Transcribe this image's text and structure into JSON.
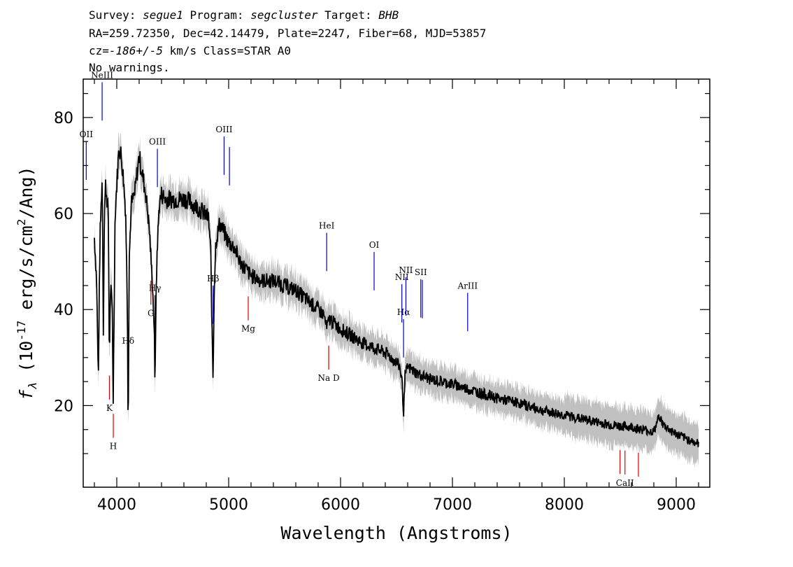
{
  "header": {
    "line1_parts": [
      "Survey: ",
      "segue1",
      " Program: ",
      "segcluster",
      " Target: ",
      "BHB"
    ],
    "line2": "RA=259.72350, Dec=42.14479, Plate=2247, Fiber=68, MJD=53857",
    "line3_parts": [
      "cz=",
      "-186+/-5",
      " km/s Class=STAR A0"
    ],
    "line4": "No warnings."
  },
  "chart_data": {
    "type": "line",
    "title": "",
    "xlabel": "Wavelength (Angstroms)",
    "ylabel_parts": [
      "f",
      "λ",
      " (10",
      "-17",
      " erg/s/cm",
      "2",
      "/Ang)"
    ],
    "xlim": [
      3700,
      9300
    ],
    "ylim": [
      3,
      88
    ],
    "x_ticks": [
      4000,
      5000,
      6000,
      7000,
      8000,
      9000
    ],
    "x_tick_labels": [
      "4000",
      "5000",
      "6000",
      "7000",
      "8000",
      "9000"
    ],
    "y_ticks": [
      20,
      40,
      60,
      80
    ],
    "y_tick_labels": [
      "20",
      "40",
      "60",
      "80"
    ],
    "grid": false,
    "series": [
      {
        "color": "#000000",
        "x": [
          3800,
          3820,
          3835,
          3842,
          3850,
          3870,
          3880,
          3889,
          3900,
          3925,
          3933,
          3945,
          3960,
          3968,
          3985,
          4000,
          4020,
          4040,
          4060,
          4080,
          4095,
          4102,
          4110,
          4130,
          4160,
          4180,
          4200,
          4230,
          4260,
          4290,
          4320,
          4335,
          4341,
          4348,
          4360,
          4380,
          4400,
          4440,
          4500,
          4560,
          4620,
          4680,
          4740,
          4780,
          4820,
          4840,
          4850,
          4861,
          4870,
          4885,
          4920,
          4960,
          5000,
          5050,
          5100,
          5200,
          5300,
          5400,
          5500,
          5600,
          5700,
          5800,
          5850,
          5876,
          5900,
          5950,
          6000,
          6100,
          6200,
          6300,
          6400,
          6500,
          6530,
          6550,
          6563,
          6575,
          6600,
          6700,
          6800,
          6900,
          7000,
          7200,
          7400,
          7600,
          7800,
          8000,
          8200,
          8400,
          8600,
          8800,
          8850,
          8880,
          9000,
          9100,
          9200
        ],
        "y": [
          55,
          46,
          25,
          40,
          55,
          68,
          35,
          60,
          66,
          60,
          30,
          45,
          40,
          21,
          60,
          66,
          74,
          72,
          67,
          60,
          40,
          12,
          50,
          62,
          64,
          68,
          72,
          68,
          64,
          57,
          45,
          36,
          23,
          38,
          52,
          62,
          64,
          63,
          63,
          63,
          63,
          62,
          61,
          60,
          59,
          52,
          37,
          25,
          44,
          54,
          58,
          56,
          54,
          53,
          50,
          47,
          46,
          46,
          45,
          44,
          42,
          40,
          39,
          36,
          38,
          37,
          36,
          34.5,
          33,
          32,
          31,
          29,
          28,
          25,
          18,
          26,
          28,
          26.5,
          25.5,
          25,
          24.5,
          23,
          21.5,
          20.5,
          19,
          18,
          17,
          16,
          15.5,
          14.5,
          18,
          16,
          14,
          13,
          12
        ]
      }
    ],
    "noise_band_color": "#c0c0c0",
    "emission_lines": [
      {
        "label": "OII",
        "wave": 3727
      },
      {
        "label": "NeIII",
        "wave": 3869
      },
      {
        "label": "Hδ",
        "wave": 4102
      },
      {
        "label": "Hγ",
        "wave": 4341
      },
      {
        "label": "OIII",
        "wave": 4363
      },
      {
        "label": "Hβ",
        "wave": 4861
      },
      {
        "label": "OIII",
        "wave": 4959
      },
      {
        "label": "",
        "wave": 5007
      },
      {
        "label": "HeI",
        "wave": 5876
      },
      {
        "label": "OI",
        "wave": 6300
      },
      {
        "label": "NII",
        "wave": 6548
      },
      {
        "label": "Hα",
        "wave": 6563
      },
      {
        "label": "NII",
        "wave": 6584
      },
      {
        "label": "SII",
        "wave": 6717
      },
      {
        "label": "",
        "wave": 6731
      },
      {
        "label": "ArIII",
        "wave": 7136
      }
    ],
    "absorption_lines": [
      {
        "label": "K",
        "wave": 3934
      },
      {
        "label": "H",
        "wave": 3969
      },
      {
        "label": "G",
        "wave": 4305
      },
      {
        "label": "Mg",
        "wave": 5175
      },
      {
        "label": "Na D",
        "wave": 5894
      },
      {
        "label": "",
        "wave": 8498
      },
      {
        "label": "CaII",
        "wave": 8542
      },
      {
        "label": "",
        "wave": 8662
      }
    ],
    "emission_color": "#0000cc",
    "absorption_color": "#dd0000"
  }
}
